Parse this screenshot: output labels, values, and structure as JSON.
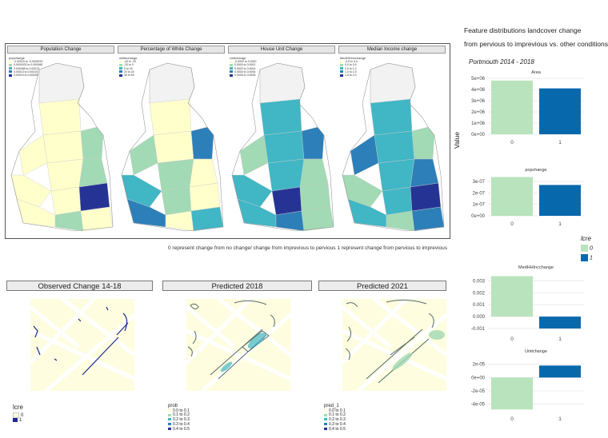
{
  "maps": {
    "panels": [
      {
        "title": "Population Change",
        "legend_title": "popchange",
        "legend": [
          "-0.00015 to -0.0000032",
          "0.0000032 to 0.000068",
          "0.000068 to 0.00013",
          "0.00013 to 0.00019",
          "0.00019 to 0.00025"
        ]
      },
      {
        "title": "Percentage of White Change",
        "legend_title": "whitechange",
        "legend": [
          "-40 to -20",
          "-20 to 0",
          "0 to 20",
          "20 to 40",
          "40 to 60"
        ]
      },
      {
        "title": "House Unit Change",
        "legend_title": "Unitchange",
        "legend": [
          "-0.0002 to 0.0000",
          "0.0000 to 0.0002",
          "0.0002 to 0.0004",
          "0.0004 to 0.0006",
          "0.0006 to 0.0008"
        ]
      },
      {
        "title": "Median Income change",
        "legend_title": "MedHHIncchange",
        "legend": [
          "-0.5 to 0.0",
          "0.0 to 0.5",
          "0.5 to 1.0",
          "1.0 to 1.5",
          "1.5 to 2.0"
        ]
      }
    ],
    "caption": "0 represent change from no change/ change from imprevious to pervious 1 represent change from pervious to imprevious"
  },
  "bottom": {
    "panels": [
      {
        "strip": "Observed Change 14-18"
      },
      {
        "strip": "Predicted 2018"
      },
      {
        "strip": "Predicted 2021"
      }
    ],
    "obs_legend": {
      "title": "lcre",
      "items": [
        "0",
        "1"
      ]
    },
    "pred_legends": [
      {
        "title": "prob",
        "items": [
          "0.0 to 0.1",
          "0.1 to 0.2",
          "0.2 to 0.3",
          "0.3 to 0.4",
          "0.4 to 0.5"
        ]
      },
      {
        "title": "pred_1",
        "items": [
          "0.0 to 0.1",
          "0.1 to 0.2",
          "0.2 to 0.3",
          "0.3 to 0.4",
          "0.4 to 0.5"
        ]
      }
    ]
  },
  "right": {
    "title_line1": "Feature distributions landcover change",
    "title_line2": "from pervious to imprevious vs. other conditions",
    "subtitle": "Portmouth 2014 - 2018",
    "ylabel": "Value",
    "legend_title": "lcre",
    "legend_items": [
      "0",
      "1"
    ]
  },
  "colors": {
    "class0": "#b9e3bd",
    "class1": "#0868ac",
    "map_low": "#ffffcc",
    "map_mid": "#41b6c4",
    "map_high": "#253494"
  },
  "chart_data": {
    "type": "bar",
    "categories": [
      "0",
      "1"
    ],
    "facets": [
      {
        "name": "Area",
        "values": [
          4800000,
          4100000
        ],
        "ylim": [
          0,
          5000000
        ],
        "ticks": [
          "0e+00",
          "1e+06",
          "2e+06",
          "3e+06",
          "4e+06",
          "5e+06"
        ],
        "tickvals": [
          0,
          1000000,
          2000000,
          3000000,
          4000000,
          5000000
        ]
      },
      {
        "name": "popchange",
        "values": [
          3.4e-07,
          2.7e-07
        ],
        "ylim": [
          0,
          3.5e-07
        ],
        "ticks": [
          "0e+00",
          "1e-07",
          "2e-07",
          "3e-07"
        ],
        "tickvals": [
          0,
          1e-07,
          2e-07,
          3e-07
        ]
      },
      {
        "name": "MedHHIncchange",
        "values": [
          0.0034,
          -0.001
        ],
        "ylim": [
          -0.0012,
          0.0035
        ],
        "ticks": [
          "-0.001",
          "0.000",
          "0.001",
          "0.002",
          "0.003"
        ],
        "tickvals": [
          -0.001,
          0,
          0.001,
          0.002,
          0.003
        ]
      },
      {
        "name": "Unitchange",
        "values": [
          -4.8e-05,
          1.8e-05
        ],
        "ylim": [
          -5e-05,
          2.2e-05
        ],
        "ticks": [
          "-4e-05",
          "-2e-05",
          "0e+00",
          "2e-05"
        ],
        "tickvals": [
          -4e-05,
          -2e-05,
          0,
          2e-05
        ]
      }
    ]
  }
}
